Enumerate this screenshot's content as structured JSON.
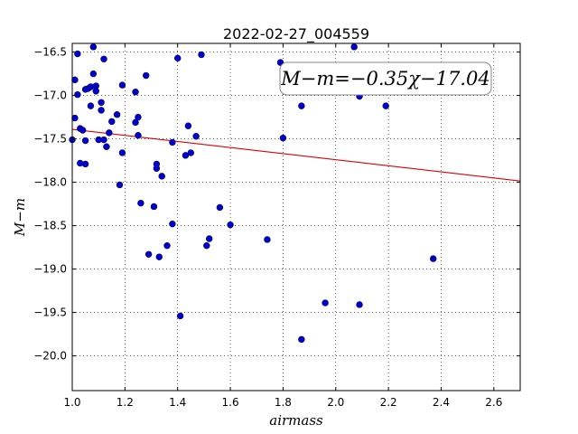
{
  "chart_data": {
    "type": "scatter",
    "title": "2022-02-27_004559",
    "xlabel": "airmass",
    "ylabel": "M−m",
    "xlim": [
      1.0,
      2.7
    ],
    "ylim": [
      -20.4,
      -16.4
    ],
    "y_inverted": true,
    "grid": true,
    "x_ticks": [
      1.0,
      1.2,
      1.4,
      1.6,
      1.8,
      2.0,
      2.2,
      2.4,
      2.6
    ],
    "x_tick_labels": [
      "1.0",
      "1.2",
      "1.4",
      "1.6",
      "1.8",
      "2.0",
      "2.2",
      "2.4",
      "2.6"
    ],
    "y_ticks": [
      -16.5,
      -17.0,
      -17.5,
      -18.0,
      -18.5,
      -19.0,
      -19.5,
      -20.0
    ],
    "y_tick_labels": [
      "−16.5",
      "−17.0",
      "−17.5",
      "−18.0",
      "−18.5",
      "−19.0",
      "−19.5",
      "−20.0"
    ],
    "points_color": "#0000cc",
    "fit_color": "#dd0000",
    "fit": {
      "slope": -0.35,
      "intercept": -17.04
    },
    "annotation": "M−m=−0.35χ−17.04",
    "points": [
      {
        "x": 1.0,
        "y": -17.51
      },
      {
        "x": 1.01,
        "y": -17.26
      },
      {
        "x": 1.01,
        "y": -16.82
      },
      {
        "x": 1.02,
        "y": -16.52
      },
      {
        "x": 1.02,
        "y": -16.99
      },
      {
        "x": 1.03,
        "y": -17.78
      },
      {
        "x": 1.03,
        "y": -17.38
      },
      {
        "x": 1.04,
        "y": -17.4
      },
      {
        "x": 1.05,
        "y": -17.79
      },
      {
        "x": 1.05,
        "y": -17.52
      },
      {
        "x": 1.05,
        "y": -16.93
      },
      {
        "x": 1.06,
        "y": -16.92
      },
      {
        "x": 1.07,
        "y": -17.12
      },
      {
        "x": 1.07,
        "y": -16.9
      },
      {
        "x": 1.08,
        "y": -16.44
      },
      {
        "x": 1.08,
        "y": -16.75
      },
      {
        "x": 1.09,
        "y": -16.95
      },
      {
        "x": 1.09,
        "y": -16.89
      },
      {
        "x": 1.1,
        "y": -17.51
      },
      {
        "x": 1.11,
        "y": -17.17
      },
      {
        "x": 1.11,
        "y": -17.08
      },
      {
        "x": 1.12,
        "y": -17.51
      },
      {
        "x": 1.12,
        "y": -16.58
      },
      {
        "x": 1.13,
        "y": -17.59
      },
      {
        "x": 1.14,
        "y": -17.43
      },
      {
        "x": 1.15,
        "y": -17.3
      },
      {
        "x": 1.17,
        "y": -17.22
      },
      {
        "x": 1.18,
        "y": -18.03
      },
      {
        "x": 1.19,
        "y": -17.66
      },
      {
        "x": 1.19,
        "y": -16.88
      },
      {
        "x": 1.24,
        "y": -16.96
      },
      {
        "x": 1.24,
        "y": -17.31
      },
      {
        "x": 1.25,
        "y": -17.46
      },
      {
        "x": 1.25,
        "y": -17.25
      },
      {
        "x": 1.26,
        "y": -18.24
      },
      {
        "x": 1.28,
        "y": -16.77
      },
      {
        "x": 1.29,
        "y": -18.83
      },
      {
        "x": 1.31,
        "y": -18.28
      },
      {
        "x": 1.32,
        "y": -17.79
      },
      {
        "x": 1.32,
        "y": -17.84
      },
      {
        "x": 1.33,
        "y": -18.86
      },
      {
        "x": 1.34,
        "y": -17.93
      },
      {
        "x": 1.36,
        "y": -18.73
      },
      {
        "x": 1.38,
        "y": -17.54
      },
      {
        "x": 1.38,
        "y": -18.48
      },
      {
        "x": 1.4,
        "y": -16.57
      },
      {
        "x": 1.41,
        "y": -19.54
      },
      {
        "x": 1.43,
        "y": -17.69
      },
      {
        "x": 1.44,
        "y": -17.35
      },
      {
        "x": 1.45,
        "y": -17.66
      },
      {
        "x": 1.47,
        "y": -17.47
      },
      {
        "x": 1.49,
        "y": -16.53
      },
      {
        "x": 1.51,
        "y": -18.73
      },
      {
        "x": 1.52,
        "y": -18.65
      },
      {
        "x": 1.56,
        "y": -18.29
      },
      {
        "x": 1.6,
        "y": -18.49
      },
      {
        "x": 1.74,
        "y": -18.66
      },
      {
        "x": 1.79,
        "y": -16.62
      },
      {
        "x": 1.8,
        "y": -17.49
      },
      {
        "x": 1.87,
        "y": -19.81
      },
      {
        "x": 1.87,
        "y": -17.12
      },
      {
        "x": 1.96,
        "y": -19.39
      },
      {
        "x": 2.07,
        "y": -16.44
      },
      {
        "x": 2.09,
        "y": -17.01
      },
      {
        "x": 2.09,
        "y": -19.41
      },
      {
        "x": 2.19,
        "y": -17.12
      },
      {
        "x": 2.37,
        "y": -18.88
      }
    ]
  }
}
